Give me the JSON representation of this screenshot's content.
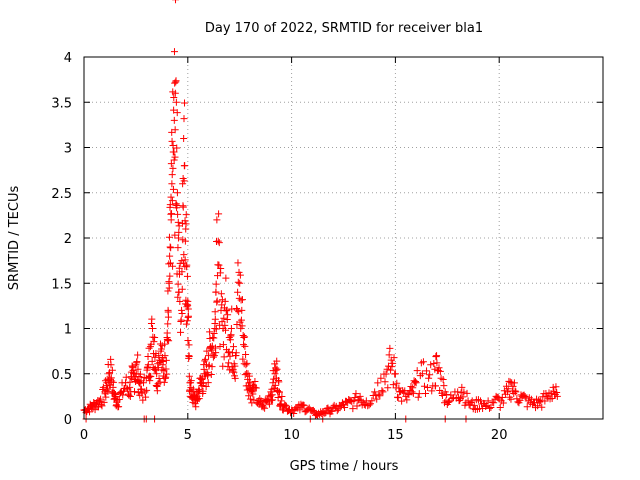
{
  "chart_data": {
    "type": "scatter",
    "title": "Day 170 of 2022, SRMTID for receiver bla1",
    "xlabel": "GPS time / hours",
    "ylabel": "SRMTID / TECUs",
    "xlim": [
      0,
      25
    ],
    "ylim": [
      0,
      4
    ],
    "xticks": [
      0,
      5,
      10,
      15,
      20
    ],
    "yticks": [
      0,
      0.5,
      1,
      1.5,
      2,
      2.5,
      3,
      3.5,
      4
    ],
    "x_tick_labels": [
      "0",
      "5",
      "10",
      "15",
      "20"
    ],
    "y_tick_labels": [
      "0",
      "0.5",
      "1",
      "1.5",
      "2",
      "2.5",
      "3",
      "3.5",
      "4"
    ],
    "grid": true,
    "marker": "+",
    "marker_color": "#ff0000",
    "series": [
      {
        "name": "SRMTID",
        "points": [
          [
            0.0,
            0.1
          ],
          [
            0.2,
            0.12
          ],
          [
            0.4,
            0.15
          ],
          [
            0.6,
            0.18
          ],
          [
            0.8,
            0.22
          ],
          [
            1.0,
            0.3
          ],
          [
            1.1,
            0.4
          ],
          [
            1.2,
            0.5
          ],
          [
            1.3,
            0.6
          ],
          [
            1.4,
            0.35
          ],
          [
            1.5,
            0.25
          ],
          [
            1.6,
            0.2
          ],
          [
            1.8,
            0.3
          ],
          [
            2.0,
            0.4
          ],
          [
            2.2,
            0.35
          ],
          [
            2.3,
            0.45
          ],
          [
            2.4,
            0.5
          ],
          [
            2.5,
            0.6
          ],
          [
            2.6,
            0.55
          ],
          [
            2.7,
            0.4
          ],
          [
            2.8,
            0.3
          ],
          [
            3.0,
            0.45
          ],
          [
            3.1,
            0.6
          ],
          [
            3.2,
            0.8
          ],
          [
            3.3,
            1.0
          ],
          [
            3.4,
            0.9
          ],
          [
            3.5,
            0.5
          ],
          [
            3.6,
            0.7
          ],
          [
            3.7,
            0.75
          ],
          [
            3.8,
            0.6
          ],
          [
            3.9,
            0.7
          ],
          [
            4.0,
            0.9
          ],
          [
            4.05,
            1.2
          ],
          [
            4.1,
            1.5
          ],
          [
            4.15,
            1.9
          ],
          [
            4.2,
            2.2
          ],
          [
            4.25,
            2.7
          ],
          [
            4.3,
            2.95
          ],
          [
            4.35,
            3.3
          ],
          [
            4.4,
            3.6
          ],
          [
            4.45,
            3.5
          ],
          [
            4.5,
            2.5
          ],
          [
            4.55,
            2.0
          ],
          [
            4.6,
            1.6
          ],
          [
            4.7,
            1.2
          ],
          [
            4.75,
            2.6
          ],
          [
            4.8,
            3.1
          ],
          [
            4.85,
            2.8
          ],
          [
            4.9,
            2.1
          ],
          [
            4.95,
            1.7
          ],
          [
            5.0,
            1.3
          ],
          [
            5.05,
            0.7
          ],
          [
            5.1,
            0.4
          ],
          [
            5.2,
            0.3
          ],
          [
            5.3,
            0.25
          ],
          [
            5.4,
            0.2
          ],
          [
            5.5,
            0.3
          ],
          [
            5.6,
            0.4
          ],
          [
            5.7,
            0.45
          ],
          [
            5.8,
            0.5
          ],
          [
            5.9,
            0.6
          ],
          [
            6.0,
            0.7
          ],
          [
            6.1,
            0.8
          ],
          [
            6.2,
            0.9
          ],
          [
            6.3,
            1.0
          ],
          [
            6.35,
            1.4
          ],
          [
            6.4,
            2.2
          ],
          [
            6.5,
            1.7
          ],
          [
            6.6,
            1.2
          ],
          [
            6.7,
            1.0
          ],
          [
            6.8,
            1.3
          ],
          [
            6.9,
            1.1
          ],
          [
            7.0,
            0.9
          ],
          [
            7.1,
            1.0
          ],
          [
            7.2,
            0.8
          ],
          [
            7.3,
            0.7
          ],
          [
            7.4,
            1.4
          ],
          [
            7.5,
            1.5
          ],
          [
            7.6,
            1.2
          ],
          [
            7.7,
            0.9
          ],
          [
            7.8,
            0.6
          ],
          [
            7.9,
            0.5
          ],
          [
            8.0,
            0.4
          ],
          [
            8.1,
            0.3
          ],
          [
            8.2,
            0.35
          ],
          [
            8.4,
            0.2
          ],
          [
            8.6,
            0.15
          ],
          [
            8.8,
            0.2
          ],
          [
            9.0,
            0.3
          ],
          [
            9.1,
            0.4
          ],
          [
            9.2,
            0.5
          ],
          [
            9.3,
            0.55
          ],
          [
            9.4,
            0.3
          ],
          [
            9.5,
            0.2
          ],
          [
            9.7,
            0.15
          ],
          [
            10.0,
            0.1
          ],
          [
            10.3,
            0.12
          ],
          [
            10.6,
            0.15
          ],
          [
            10.9,
            0.1
          ],
          [
            11.2,
            0.05
          ],
          [
            11.5,
            0.08
          ],
          [
            11.8,
            0.1
          ],
          [
            12.1,
            0.12
          ],
          [
            12.4,
            0.15
          ],
          [
            12.7,
            0.18
          ],
          [
            13.0,
            0.2
          ],
          [
            13.3,
            0.25
          ],
          [
            13.6,
            0.2
          ],
          [
            14.0,
            0.3
          ],
          [
            14.3,
            0.45
          ],
          [
            14.6,
            0.55
          ],
          [
            14.8,
            0.65
          ],
          [
            15.0,
            0.5
          ],
          [
            15.2,
            0.3
          ],
          [
            15.5,
            0.25
          ],
          [
            15.8,
            0.3
          ],
          [
            16.0,
            0.4
          ],
          [
            16.3,
            0.5
          ],
          [
            16.6,
            0.45
          ],
          [
            16.9,
            0.55
          ],
          [
            17.0,
            0.62
          ],
          [
            17.2,
            0.45
          ],
          [
            17.4,
            0.3
          ],
          [
            17.6,
            0.2
          ],
          [
            18.0,
            0.3
          ],
          [
            18.2,
            0.35
          ],
          [
            18.5,
            0.2
          ],
          [
            18.8,
            0.15
          ],
          [
            19.1,
            0.2
          ],
          [
            19.4,
            0.15
          ],
          [
            19.8,
            0.22
          ],
          [
            20.1,
            0.2
          ],
          [
            20.4,
            0.3
          ],
          [
            20.6,
            0.4
          ],
          [
            20.8,
            0.3
          ],
          [
            21.1,
            0.25
          ],
          [
            21.4,
            0.2
          ],
          [
            21.7,
            0.18
          ],
          [
            22.0,
            0.2
          ],
          [
            22.3,
            0.25
          ],
          [
            22.6,
            0.35
          ],
          [
            22.8,
            0.25
          ]
        ],
        "baseline_points": [
          0.1,
          2.9,
          3.0,
          3.4,
          10.9,
          11.5,
          15.5,
          17.4,
          18.4
        ],
        "baseline_value": 0
      }
    ]
  }
}
